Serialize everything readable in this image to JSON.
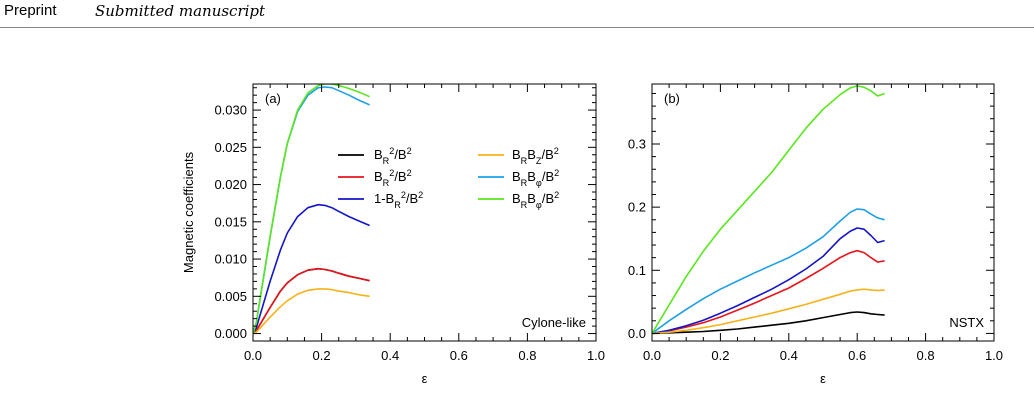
{
  "header": {
    "label": "Preprint",
    "subtitle": "Submitted manuscript"
  },
  "chart_data": [
    {
      "type": "line",
      "panel_label": "(a)",
      "annotation": "Cylone-like",
      "xlabel": "ε",
      "ylabel": "Magnetic coefficients",
      "xlim": [
        0,
        1.0
      ],
      "ylim": [
        -0.001,
        0.0335
      ],
      "xticks": [
        "0.0",
        "0.2",
        "0.4",
        "0.6",
        "0.8",
        "1.0"
      ],
      "yticks": [
        "0.000",
        "0.005",
        "0.010",
        "0.015",
        "0.020",
        "0.025",
        "0.030"
      ],
      "ytick_values": [
        0,
        0.005,
        0.01,
        0.015,
        0.02,
        0.025,
        0.03
      ],
      "legend": "top-right",
      "x": [
        0,
        0.01,
        0.02,
        0.05,
        0.08,
        0.1,
        0.13,
        0.16,
        0.19,
        0.21,
        0.23,
        0.25,
        0.28,
        0.31,
        0.34
      ],
      "series": [
        {
          "name": "BR²/B²",
          "name_html": "B<tspan baseline-shift='sub' font-size='70%'>R</tspan><tspan baseline-shift='super' font-size='70%'>2</tspan>/B<tspan baseline-shift='super' font-size='70%'>2</tspan>",
          "color": "#000000",
          "values": [
            0,
            0.0004,
            0.0012,
            0.0035,
            0.0057,
            0.0068,
            0.0079,
            0.0085,
            0.0087,
            0.0086,
            0.0084,
            0.0081,
            0.0077,
            0.0074,
            0.0071
          ]
        },
        {
          "name": "BR²/B²",
          "name_html": "B<tspan baseline-shift='sub' font-size='70%'>R</tspan><tspan baseline-shift='super' font-size='70%'>2</tspan>/B<tspan baseline-shift='super' font-size='70%'>2</tspan>",
          "color": "#e8141c",
          "values": [
            0,
            0.0004,
            0.0012,
            0.0035,
            0.0057,
            0.0068,
            0.0079,
            0.0085,
            0.0087,
            0.0086,
            0.0084,
            0.0081,
            0.0077,
            0.0074,
            0.0071
          ]
        },
        {
          "name": "1-BR²/B²",
          "name_html": "1-B<tspan baseline-shift='sub' font-size='70%'>R</tspan><tspan baseline-shift='super' font-size='70%'>2</tspan>/B<tspan baseline-shift='super' font-size='70%'>2</tspan>",
          "color": "#1414c8",
          "values": [
            0,
            0.0008,
            0.0024,
            0.007,
            0.0112,
            0.0135,
            0.0157,
            0.0169,
            0.0173,
            0.0172,
            0.0169,
            0.0164,
            0.0157,
            0.0151,
            0.0145
          ]
        },
        {
          "name": "BRBZ/B²",
          "name_html": "B<tspan baseline-shift='sub' font-size='70%'>R</tspan>B<tspan baseline-shift='sub' font-size='70%'>Z</tspan>/B<tspan baseline-shift='super' font-size='70%'>2</tspan>",
          "color": "#f5b21a",
          "values": [
            0,
            0.0002,
            0.0007,
            0.0022,
            0.0036,
            0.0044,
            0.0053,
            0.0058,
            0.006,
            0.006,
            0.0059,
            0.0057,
            0.0055,
            0.0052,
            0.005
          ]
        },
        {
          "name": "BRBφ/B²",
          "name_html": "B<tspan baseline-shift='sub' font-size='70%'>R</tspan>B<tspan baseline-shift='sub' font-size='70%'>φ</tspan>/B<tspan baseline-shift='super' font-size='70%'>2</tspan>",
          "color": "#1ea0e6",
          "values": [
            0,
            0.0015,
            0.0045,
            0.013,
            0.021,
            0.0255,
            0.0298,
            0.032,
            0.033,
            0.0331,
            0.033,
            0.0326,
            0.032,
            0.0313,
            0.0307
          ]
        },
        {
          "name": "BRBφ/B²",
          "name_html": "B<tspan baseline-shift='sub' font-size='70%'>R</tspan>B<tspan baseline-shift='sub' font-size='70%'>φ</tspan>/B<tspan baseline-shift='super' font-size='70%'>2</tspan>",
          "color": "#5ae61e",
          "values": [
            0,
            0.0015,
            0.0045,
            0.013,
            0.021,
            0.0255,
            0.03,
            0.0323,
            0.0333,
            0.0335,
            0.0335,
            0.0333,
            0.0329,
            0.0324,
            0.0318
          ]
        }
      ]
    },
    {
      "type": "line",
      "panel_label": "(b)",
      "annotation": "NSTX",
      "xlabel": "ε",
      "ylabel": "",
      "xlim": [
        0,
        1.0
      ],
      "ylim": [
        -0.012,
        0.395
      ],
      "xticks": [
        "0.0",
        "0.2",
        "0.4",
        "0.6",
        "0.8",
        "1.0"
      ],
      "yticks": [
        "0.0",
        "0.1",
        "0.2",
        "0.3"
      ],
      "ytick_values": [
        0,
        0.1,
        0.2,
        0.3
      ],
      "x": [
        0,
        0.05,
        0.1,
        0.15,
        0.2,
        0.25,
        0.3,
        0.35,
        0.4,
        0.45,
        0.5,
        0.55,
        0.58,
        0.6,
        0.62,
        0.64,
        0.66,
        0.68
      ],
      "series": [
        {
          "color": "#000000",
          "values": [
            0,
            0.001,
            0.002,
            0.003,
            0.005,
            0.007,
            0.01,
            0.013,
            0.016,
            0.02,
            0.025,
            0.03,
            0.033,
            0.034,
            0.033,
            0.031,
            0.03,
            0.029
          ]
        },
        {
          "color": "#e8141c",
          "values": [
            0,
            0.004,
            0.01,
            0.017,
            0.026,
            0.037,
            0.048,
            0.06,
            0.072,
            0.087,
            0.103,
            0.12,
            0.128,
            0.131,
            0.128,
            0.12,
            0.113,
            0.115
          ]
        },
        {
          "color": "#1414c8",
          "values": [
            0,
            0.005,
            0.012,
            0.021,
            0.032,
            0.044,
            0.057,
            0.07,
            0.085,
            0.102,
            0.122,
            0.15,
            0.162,
            0.167,
            0.165,
            0.155,
            0.144,
            0.147
          ]
        },
        {
          "color": "#f5b21a",
          "values": [
            0,
            0.002,
            0.005,
            0.009,
            0.014,
            0.02,
            0.026,
            0.032,
            0.039,
            0.046,
            0.054,
            0.062,
            0.067,
            0.069,
            0.07,
            0.069,
            0.068,
            0.069
          ]
        },
        {
          "color": "#1ea0e6",
          "values": [
            0,
            0.02,
            0.038,
            0.055,
            0.07,
            0.083,
            0.096,
            0.108,
            0.12,
            0.135,
            0.153,
            0.178,
            0.192,
            0.197,
            0.196,
            0.189,
            0.183,
            0.18
          ]
        },
        {
          "color": "#5ae61e",
          "values": [
            0,
            0.045,
            0.09,
            0.13,
            0.165,
            0.195,
            0.225,
            0.255,
            0.29,
            0.325,
            0.355,
            0.378,
            0.389,
            0.392,
            0.39,
            0.384,
            0.376,
            0.38
          ]
        }
      ]
    }
  ]
}
